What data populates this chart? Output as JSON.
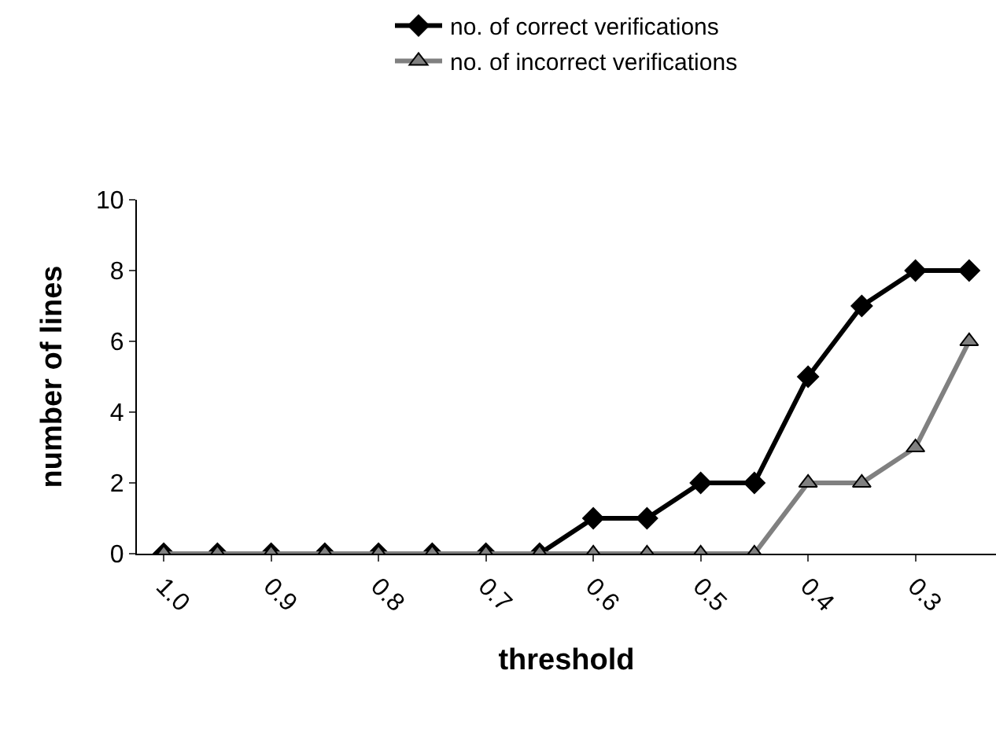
{
  "chart_data": {
    "type": "line",
    "xlabel": "threshold",
    "ylabel": "number of lines",
    "categories": [
      "1.0",
      null,
      "0.9",
      null,
      "0.8",
      null,
      "0.7",
      null,
      "0.6",
      null,
      "0.5",
      null,
      "0.4",
      null,
      "0.3",
      null
    ],
    "series": [
      {
        "name": "no. of correct verifications",
        "color": "#000000",
        "marker": "diamond",
        "values": [
          0,
          0,
          0,
          0,
          0,
          0,
          0,
          0,
          1,
          1,
          2,
          2,
          5,
          7,
          8,
          8
        ]
      },
      {
        "name": "no. of incorrect verifications",
        "color": "#808080",
        "marker": "triangle",
        "values": [
          0,
          0,
          0,
          0,
          0,
          0,
          0,
          0,
          0,
          0,
          0,
          0,
          2,
          2,
          3,
          6
        ]
      }
    ],
    "ylim": [
      0,
      10
    ],
    "yticks": [
      0,
      2,
      4,
      6,
      8,
      10
    ],
    "grid": false,
    "legend": "top"
  }
}
